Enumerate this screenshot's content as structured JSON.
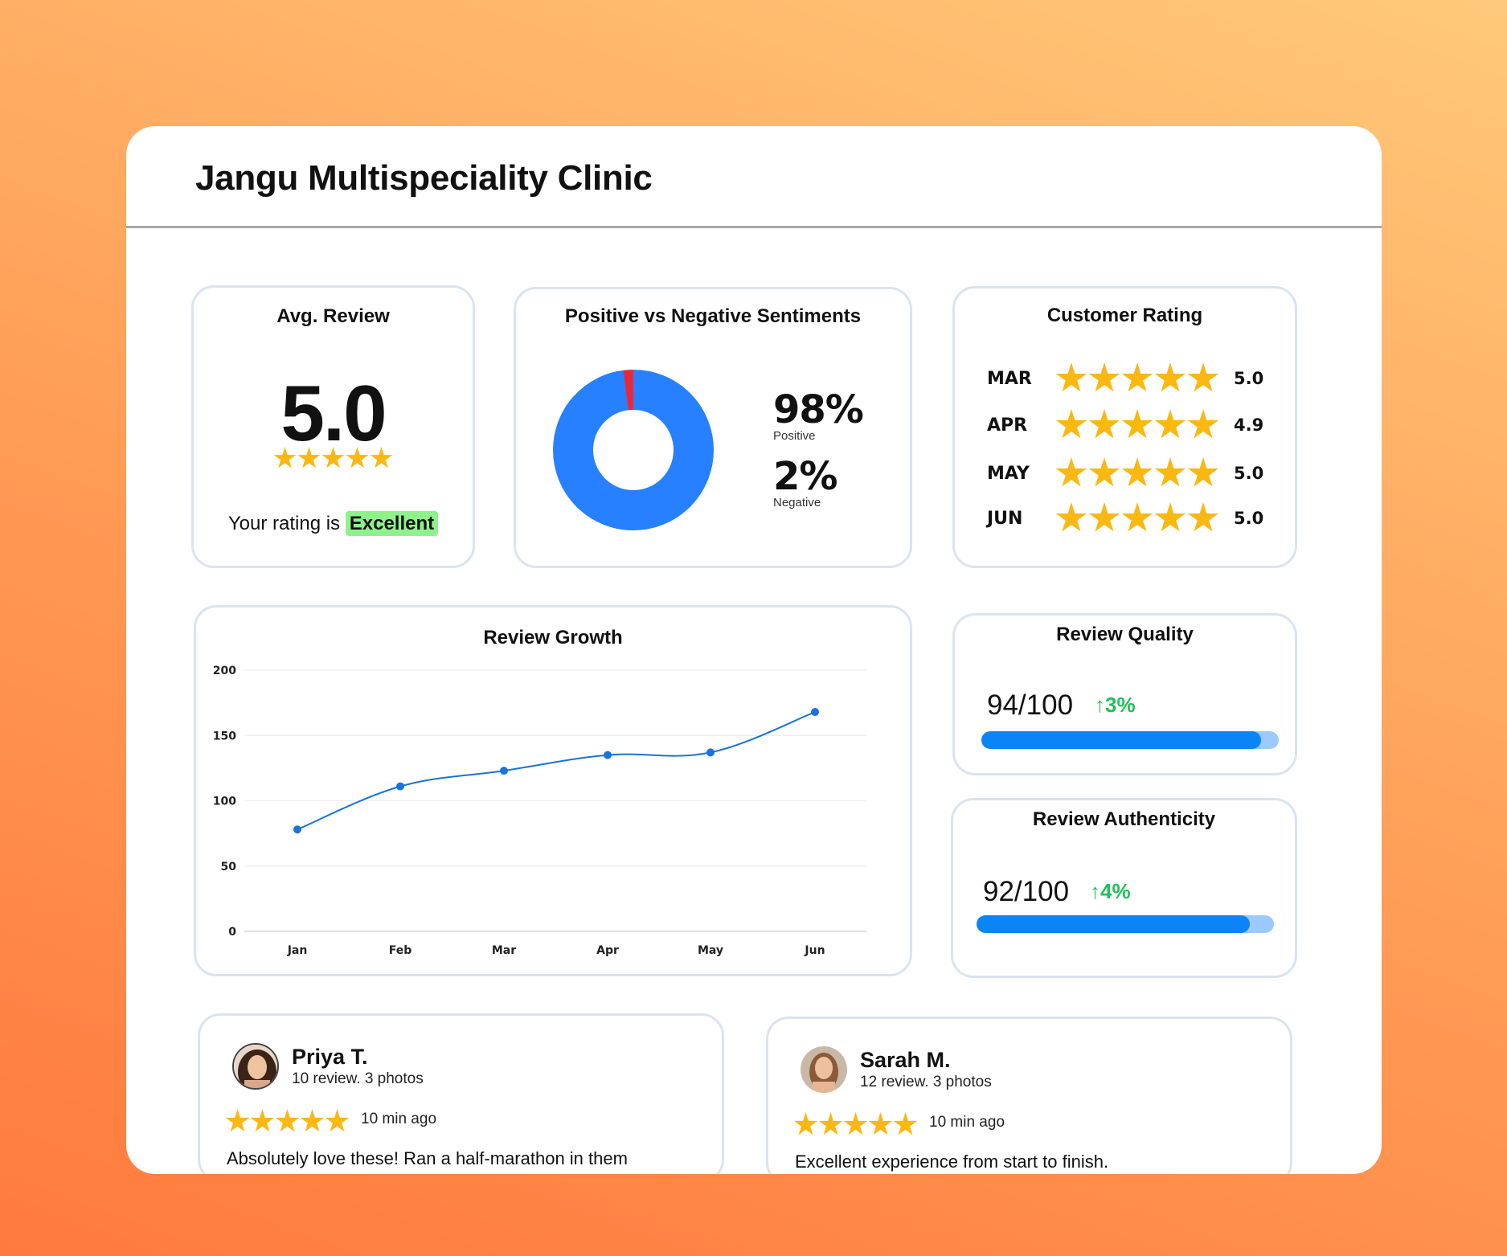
{
  "header": {
    "title": "Jangu Multispeciality Clinic"
  },
  "avg_review": {
    "title": "Avg. Review",
    "value": "5.0",
    "stars": 5,
    "rating_prefix": "Your rating is",
    "rating_label": "Excellent"
  },
  "sentiment": {
    "title": "Positive vs Negative Sentiments",
    "positive_pct": "98%",
    "positive_label": "Positive",
    "negative_pct": "2%",
    "negative_label": "Negative",
    "positive_value": 98,
    "negative_value": 2,
    "colors": {
      "positive": "#2680ff",
      "negative": "#e8283a"
    }
  },
  "customer_rating": {
    "title": "Customer Rating",
    "rows": [
      {
        "month": "MAR",
        "value": "5.0"
      },
      {
        "month": "APR",
        "value": "4.9"
      },
      {
        "month": "MAY",
        "value": "5.0"
      },
      {
        "month": "JUN",
        "value": "5.0"
      }
    ]
  },
  "chart_data": {
    "type": "line",
    "title": "Review Growth",
    "categories": [
      "Jan",
      "Feb",
      "Mar",
      "Apr",
      "May",
      "Jun"
    ],
    "values": [
      78,
      111,
      123,
      135,
      137,
      168
    ],
    "yticks": [
      "200",
      "150",
      "100",
      "50",
      "0"
    ],
    "ylim": [
      0,
      200
    ],
    "grid": true,
    "color": "#1a73d9"
  },
  "review_quality": {
    "title": "Review Quality",
    "score": "94/100",
    "delta": "↑3%",
    "fill": 0.94
  },
  "review_authenticity": {
    "title": "Review Authenticity",
    "score": "92/100",
    "delta": "↑4%",
    "fill": 0.92
  },
  "reviews": [
    {
      "name": "Priya T.",
      "meta": "10 review. 3 photos",
      "stars": 5,
      "time": "10 min ago",
      "text": "Absolutely love these! Ran a half-marathon in them"
    },
    {
      "name": "Sarah M.",
      "meta": "12 review. 3 photos",
      "stars": 5,
      "time": "10 min ago",
      "text": "Excellent experience from start to finish."
    }
  ],
  "star_color": "#fbb812"
}
